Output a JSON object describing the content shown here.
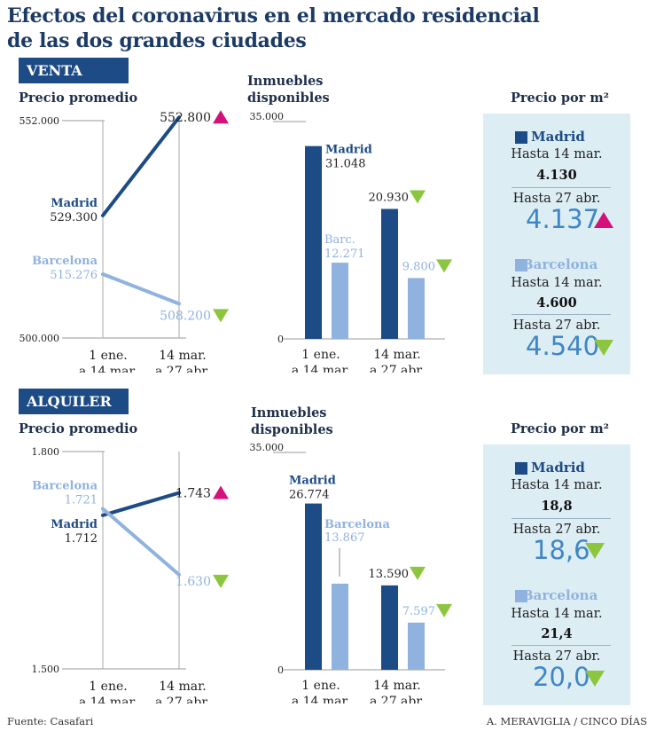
{
  "title_line1": "Efectos del coronavirus en el mercado residencial",
  "title_line2": "de las dos grandes ciudades",
  "colors": {
    "madrid": "#1d4b86",
    "barcelona": "#8fb2df",
    "up": "#d6107a",
    "down": "#8cc63e",
    "box": "#dcedf4"
  },
  "labels": {
    "precio_promedio": "Precio promedio",
    "inmuebles_1": "Inmuebles",
    "inmuebles_2": "disponibles",
    "precio_m2": "Precio por m²",
    "hasta14": "Hasta 14 mar.",
    "hasta27": "Hasta 27 abr."
  },
  "venta": {
    "tag": "VENTA",
    "sq_m": {
      "madrid_1": "4.130",
      "madrid_2": "4.137",
      "madrid_trend": "up",
      "barcelona_1": "4.600",
      "barcelona_2": "4.540",
      "barcelona_trend": "down",
      "madrid": "Madrid",
      "barcelona": "Barcelona"
    }
  },
  "alquiler": {
    "tag": "ALQUILER",
    "sq_m": {
      "madrid_1": "18,8",
      "madrid_2": "18,6",
      "madrid_trend": "down",
      "barcelona_1": "21,4",
      "barcelona_2": "20,0",
      "barcelona_trend": "down",
      "madrid": "Madrid",
      "barcelona": "Barcelona"
    }
  },
  "footer": {
    "source": "Fuente: Casafari",
    "credit": "A. MERAVIGLIA / CINCO DÍAS"
  },
  "chart_data": [
    {
      "id": "venta-precio",
      "type": "line",
      "x": [
        "1 ene. a 14 mar.",
        "14 mar. a 27 abr."
      ],
      "ylim": [
        500000,
        552000
      ],
      "ytick_labels": [
        "552.000",
        "500.000"
      ],
      "series": [
        {
          "name": "Madrid",
          "values": [
            529300,
            552800
          ],
          "labels": [
            "529.300",
            "552.800"
          ],
          "trend": "up"
        },
        {
          "name": "Barcelona",
          "values": [
            515276,
            508200
          ],
          "labels": [
            "515.276",
            "508.200"
          ],
          "trend": "down"
        }
      ]
    },
    {
      "id": "venta-inmuebles",
      "type": "bar",
      "categories": [
        "1 ene. a 14 mar.",
        "14 mar. a 27 abr."
      ],
      "ylim": [
        0,
        35000
      ],
      "ytick_labels": [
        "35.000",
        "0"
      ],
      "series": [
        {
          "name": "Madrid",
          "values": [
            31048,
            20930
          ],
          "labels": [
            "31.048",
            "20.930"
          ],
          "legend": "Madrid"
        },
        {
          "name": "Barcelona",
          "values": [
            12271,
            9800
          ],
          "labels": [
            "12.271",
            "9.800"
          ],
          "legend": "Barc."
        }
      ]
    },
    {
      "id": "alquiler-precio",
      "type": "line",
      "x": [
        "1 ene. a 14 mar.",
        "14 mar. a 27 abr."
      ],
      "ylim": [
        1500,
        1800
      ],
      "ytick_labels": [
        "1.800",
        "1.500"
      ],
      "series": [
        {
          "name": "Madrid",
          "values": [
            1712,
            1743
          ],
          "labels": [
            "1.712",
            "1.743"
          ],
          "trend": "up"
        },
        {
          "name": "Barcelona",
          "values": [
            1721,
            1630
          ],
          "labels": [
            "1.721",
            "1.630"
          ],
          "trend": "down"
        }
      ]
    },
    {
      "id": "alquiler-inmuebles",
      "type": "bar",
      "categories": [
        "1 ene. a 14 mar.",
        "14 mar. a 27 abr."
      ],
      "ylim": [
        0,
        35000
      ],
      "ytick_labels": [
        "35.000",
        "0"
      ],
      "series": [
        {
          "name": "Madrid",
          "values": [
            26774,
            13590
          ],
          "labels": [
            "26.774",
            "13.590"
          ],
          "legend": "Madrid"
        },
        {
          "name": "Barcelona",
          "values": [
            13867,
            7597
          ],
          "labels": [
            "13.867",
            "7.597"
          ],
          "legend": "Barcelona"
        }
      ]
    }
  ]
}
